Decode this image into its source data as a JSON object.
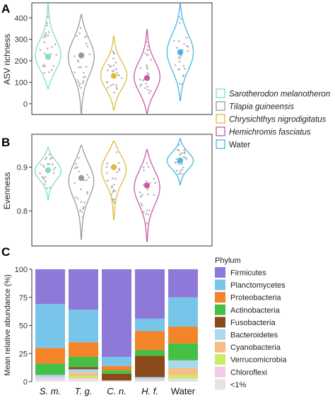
{
  "panels": {
    "a": "A",
    "b": "B",
    "c": "C"
  },
  "species_legend": [
    {
      "label": "Sarotherodon melanotheron",
      "color": "#7fe0b6",
      "italic": true
    },
    {
      "label": "Tilapia guineensis",
      "color": "#9a9a9a",
      "italic": true
    },
    {
      "label": "Chrysichthys nigrodigitatus",
      "color": "#e2b93b",
      "italic": true
    },
    {
      "label": "Hemichromis fasciatus",
      "color": "#c75ba6",
      "italic": true
    },
    {
      "label": "Water",
      "color": "#45b6e8",
      "italic": false
    }
  ],
  "phylum_legend": {
    "title": "Phylum",
    "items": [
      {
        "label": "Firmicutes",
        "color": "#8f79d8"
      },
      {
        "label": "Planctomycetes",
        "color": "#78c5ea"
      },
      {
        "label": "Proteobacteria",
        "color": "#f4842a"
      },
      {
        "label": "Actinobacteria",
        "color": "#45c046"
      },
      {
        "label": "Fusobacteria",
        "color": "#8b4a1b"
      },
      {
        "label": "Bacteroidetes",
        "color": "#a9d9ee"
      },
      {
        "label": "Cyanobacteria",
        "color": "#f7bd86"
      },
      {
        "label": "Verrucomicrobia",
        "color": "#c9ed68"
      },
      {
        "label": "Chloroflexi",
        "color": "#f6c8e6"
      },
      {
        "label": "<1%",
        "color": "#e4e4e4"
      }
    ]
  },
  "chart_data": [
    {
      "type": "violin",
      "panel": "A",
      "ylabel": "ASV richness",
      "ylim": [
        -50,
        470
      ],
      "yticks": [
        0,
        100,
        200,
        300,
        400
      ],
      "grid": false,
      "groups": [
        {
          "name": "Sarotherodon melanotheron",
          "color": "#7fe0b6",
          "mean": 218,
          "range": [
            70,
            465
          ]
        },
        {
          "name": "Tilapia guineensis",
          "color": "#9a9a9a",
          "mean": 225,
          "range": [
            -45,
            415
          ]
        },
        {
          "name": "Chrysichthys nigrodigitatus",
          "color": "#e2b93b",
          "mean": 130,
          "range": [
            -30,
            315
          ]
        },
        {
          "name": "Hemichromis fasciatus",
          "color": "#c75ba6",
          "mean": 120,
          "range": [
            -45,
            345
          ]
        },
        {
          "name": "Water",
          "color": "#45b6e8",
          "mean": 240,
          "range": [
            15,
            465
          ]
        }
      ]
    },
    {
      "type": "violin",
      "panel": "B",
      "ylabel": "Evenness",
      "ylim": [
        0.72,
        0.975
      ],
      "yticks": [
        0.8,
        0.9
      ],
      "grid": false,
      "groups": [
        {
          "name": "Sarotherodon melanotheron",
          "color": "#7fe0b6",
          "mean": 0.893,
          "range": [
            0.826,
            0.945
          ]
        },
        {
          "name": "Tilapia guineensis",
          "color": "#9a9a9a",
          "mean": 0.875,
          "range": [
            0.735,
            0.95
          ]
        },
        {
          "name": "Chrysichthys nigrodigitatus",
          "color": "#e2b93b",
          "mean": 0.9,
          "range": [
            0.78,
            0.96
          ]
        },
        {
          "name": "Hemichromis fasciatus",
          "color": "#c75ba6",
          "mean": 0.858,
          "range": [
            0.73,
            0.94
          ]
        },
        {
          "name": "Water",
          "color": "#45b6e8",
          "mean": 0.915,
          "range": [
            0.86,
            0.965
          ]
        }
      ]
    },
    {
      "type": "bar",
      "panel": "C",
      "stacked": true,
      "ylabel": "Mean relative abundance (%)",
      "ylim": [
        0,
        100
      ],
      "yticks": [
        0,
        25,
        50,
        75,
        100
      ],
      "categories": [
        "S. m.",
        "T. g.",
        "C. n.",
        "H. f.",
        "Water"
      ],
      "series": [
        {
          "name": "<1%",
          "values": [
            2,
            2,
            1,
            1,
            2
          ]
        },
        {
          "name": "Chloroflexi",
          "values": [
            2,
            1,
            0,
            1,
            1
          ]
        },
        {
          "name": "Verrucomicrobia",
          "values": [
            0,
            2,
            0,
            0,
            3
          ]
        },
        {
          "name": "Cyanobacteria",
          "values": [
            0,
            3,
            0,
            0,
            6
          ]
        },
        {
          "name": "Bacteroidetes",
          "values": [
            2,
            3,
            0,
            2,
            7
          ]
        },
        {
          "name": "Fusobacteria",
          "values": [
            0,
            2,
            6,
            19,
            0
          ]
        },
        {
          "name": "Actinobacteria",
          "values": [
            10,
            9,
            3,
            5,
            15
          ]
        },
        {
          "name": "Proteobacteria",
          "values": [
            14,
            13,
            4,
            17,
            15
          ]
        },
        {
          "name": "Planctomycetes",
          "values": [
            39,
            29,
            8,
            11,
            26
          ]
        },
        {
          "name": "Firmicutes",
          "values": [
            31,
            36,
            78,
            44,
            25
          ]
        }
      ]
    }
  ]
}
